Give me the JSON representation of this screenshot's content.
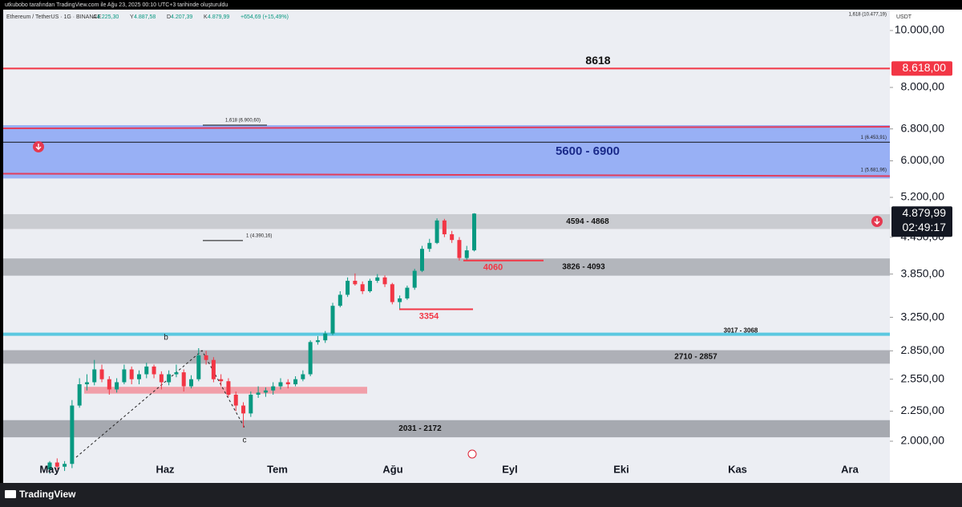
{
  "header": {
    "credit": "utkubobo tarafından TradingView.com ile Ağu 23, 2025 00:10 UTC+3 tarihinde oluşturuldu",
    "symbol": "Ethereum / TetherUS · 1G · BINANCE",
    "ohlc": [
      {
        "key": "A",
        "value": "4.225,30"
      },
      {
        "key": "Y",
        "value": "4.887,58"
      },
      {
        "key": "D",
        "value": "4.207,39"
      },
      {
        "key": "K",
        "value": "4.879,99"
      }
    ],
    "change": "+654,69 (+15,49%)"
  },
  "currency": "USDT",
  "price_axis": {
    "log": true,
    "ticks": [
      {
        "value": 10000,
        "label": "10.000,00"
      },
      {
        "value": 8000,
        "label": "8.000,00"
      },
      {
        "value": 6800,
        "label": "6.800,00"
      },
      {
        "value": 6000,
        "label": "6.000,00"
      },
      {
        "value": 5200,
        "label": "5.200,00"
      },
      {
        "value": 4450,
        "label": "4.450,00"
      },
      {
        "value": 3850,
        "label": "3.850,00"
      },
      {
        "value": 3250,
        "label": "3.250,00"
      },
      {
        "value": 2850,
        "label": "2.850,00"
      },
      {
        "value": 2550,
        "label": "2.550,00"
      },
      {
        "value": 2250,
        "label": "2.250,00"
      },
      {
        "value": 2000,
        "label": "2.000,00"
      }
    ]
  },
  "time_axis": [
    "May",
    "Haz",
    "Tem",
    "Ağu",
    "Eyl",
    "Eki",
    "Kas",
    "Ara"
  ],
  "price_tags": [
    {
      "value": 8618,
      "label": "8.618,00",
      "color": "#f23645"
    },
    {
      "value": 4879.99,
      "label": "4.879,99",
      "color": "#131722",
      "countdown": "02:49:17"
    }
  ],
  "levels": [
    {
      "label": "8618",
      "value": 8618,
      "color": "#f23645"
    },
    {
      "label": "3017 - 3068",
      "value": 3042,
      "color": "#5bc8e0"
    }
  ],
  "zones": [
    {
      "label": "5600 - 6900",
      "low": 5600,
      "high": 6900,
      "color": "#8fa8f5"
    },
    {
      "label": "4594 - 4868",
      "low": 4594,
      "high": 4868,
      "color": "#c4c5ca"
    },
    {
      "label": "3826 - 4093",
      "low": 3826,
      "high": 4093,
      "color": "#a9abb2"
    },
    {
      "label": "2710 - 2857",
      "low": 2710,
      "high": 2857,
      "color": "#a3a5ab"
    },
    {
      "label": "2031 - 2172",
      "low": 2031,
      "high": 2172,
      "color": "#9a9ca3"
    }
  ],
  "band": {
    "low": 2410,
    "high": 2475,
    "color": "#f28b96"
  },
  "supports": [
    {
      "label": "4060",
      "value": 4060
    },
    {
      "label": "3354",
      "value": 3354
    }
  ],
  "fibs": [
    {
      "label": "1,618 (10.477,19)",
      "value": 10477.19
    },
    {
      "label": "1,618 (6.900,60)",
      "value": 6900.6
    },
    {
      "label": "1 (6.453,91)",
      "value": 6453.91
    },
    {
      "label": "1 (5.681,96)",
      "value": 5681.96
    },
    {
      "label": "1 (4.390,16)",
      "value": 4390.16
    }
  ],
  "waves": [
    "b",
    "c"
  ],
  "candles": [
    [
      1790,
      1850,
      1760,
      1840
    ],
    [
      1840,
      1870,
      1790,
      1810
    ],
    [
      1810,
      1850,
      1780,
      1830
    ],
    [
      1830,
      2350,
      1800,
      2300
    ],
    [
      2300,
      2560,
      2280,
      2500
    ],
    [
      2500,
      2600,
      2440,
      2520
    ],
    [
      2520,
      2750,
      2490,
      2650
    ],
    [
      2650,
      2700,
      2520,
      2550
    ],
    [
      2550,
      2580,
      2400,
      2450
    ],
    [
      2450,
      2560,
      2420,
      2520
    ],
    [
      2520,
      2700,
      2500,
      2650
    ],
    [
      2650,
      2680,
      2500,
      2550
    ],
    [
      2550,
      2640,
      2500,
      2600
    ],
    [
      2600,
      2720,
      2560,
      2680
    ],
    [
      2680,
      2700,
      2560,
      2600
    ],
    [
      2600,
      2630,
      2450,
      2520
    ],
    [
      2520,
      2640,
      2490,
      2600
    ],
    [
      2600,
      2700,
      2570,
      2620
    ],
    [
      2620,
      2650,
      2430,
      2480
    ],
    [
      2480,
      2590,
      2460,
      2550
    ],
    [
      2550,
      2880,
      2530,
      2800
    ],
    [
      2800,
      2850,
      2700,
      2750
    ],
    [
      2750,
      2780,
      2520,
      2550
    ],
    [
      2550,
      2600,
      2480,
      2530
    ],
    [
      2530,
      2560,
      2380,
      2400
    ],
    [
      2400,
      2430,
      2250,
      2300
    ],
    [
      2300,
      2330,
      2110,
      2230
    ],
    [
      2230,
      2430,
      2200,
      2400
    ],
    [
      2400,
      2480,
      2370,
      2420
    ],
    [
      2420,
      2470,
      2380,
      2440
    ],
    [
      2440,
      2520,
      2400,
      2480
    ],
    [
      2480,
      2560,
      2450,
      2520
    ],
    [
      2520,
      2550,
      2460,
      2500
    ],
    [
      2500,
      2580,
      2480,
      2550
    ],
    [
      2550,
      2640,
      2530,
      2600
    ],
    [
      2600,
      2970,
      2580,
      2950
    ],
    [
      2950,
      3020,
      2920,
      2970
    ],
    [
      2970,
      3080,
      2940,
      3050
    ],
    [
      3050,
      3440,
      3030,
      3400
    ],
    [
      3400,
      3600,
      3380,
      3550
    ],
    [
      3550,
      3800,
      3520,
      3750
    ],
    [
      3750,
      3860,
      3680,
      3700
    ],
    [
      3700,
      3740,
      3560,
      3600
    ],
    [
      3600,
      3780,
      3580,
      3750
    ],
    [
      3750,
      3850,
      3720,
      3800
    ],
    [
      3800,
      3830,
      3660,
      3700
    ],
    [
      3700,
      3720,
      3420,
      3450
    ],
    [
      3450,
      3540,
      3354,
      3500
    ],
    [
      3500,
      3680,
      3480,
      3650
    ],
    [
      3650,
      3930,
      3620,
      3900
    ],
    [
      3900,
      4300,
      3880,
      4250
    ],
    [
      4250,
      4420,
      4200,
      4350
    ],
    [
      4350,
      4790,
      4330,
      4750
    ],
    [
      4750,
      4780,
      4450,
      4500
    ],
    [
      4500,
      4560,
      4350,
      4400
    ],
    [
      4400,
      4450,
      4060,
      4100
    ],
    [
      4100,
      4300,
      4070,
      4225
    ],
    [
      4225,
      4887.58,
      4207.39,
      4879.99
    ]
  ],
  "branding": "TradingView"
}
